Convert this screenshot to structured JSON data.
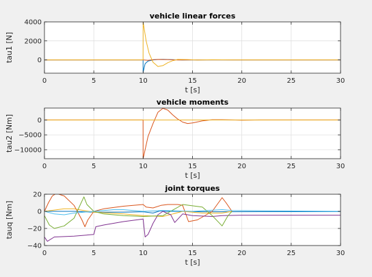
{
  "colors": {
    "figure_bg": "#f0f0f0",
    "axes_bg": "#ffffff",
    "grid": "#dcdcdc",
    "axis": "#262626",
    "series": [
      "#0072bd",
      "#d95319",
      "#edb120",
      "#7e2f8e",
      "#77ac30",
      "#4dbeee"
    ]
  },
  "chart_data": [
    {
      "type": "line",
      "title": "vehicle linear forces",
      "xlabel": "t [s]",
      "ylabel": "tau1 [N]",
      "xlim": [
        0,
        30
      ],
      "ylim": [
        -1400,
        4000
      ],
      "xticks": [
        0,
        5,
        10,
        15,
        20,
        25,
        30
      ],
      "yticks": [
        0,
        2000,
        4000
      ],
      "grid": true,
      "series": [
        {
          "color_index": 0,
          "points": [
            [
              0,
              0
            ],
            [
              9.99,
              0
            ],
            [
              10.0,
              -1300
            ],
            [
              10.2,
              -400
            ],
            [
              10.5,
              -120
            ],
            [
              11,
              0
            ],
            [
              11.5,
              40
            ],
            [
              12,
              60
            ],
            [
              13,
              20
            ],
            [
              14,
              -10
            ],
            [
              15,
              0
            ],
            [
              30,
              0
            ]
          ]
        },
        {
          "color_index": 1,
          "points": [
            [
              0,
              0
            ],
            [
              10,
              0
            ],
            [
              10.5,
              -50
            ],
            [
              11,
              20
            ],
            [
              11.5,
              50
            ],
            [
              12.5,
              30
            ],
            [
              13.5,
              -10
            ],
            [
              15,
              0
            ],
            [
              30,
              0
            ]
          ]
        },
        {
          "color_index": 2,
          "points": [
            [
              0,
              0
            ],
            [
              9.99,
              0
            ],
            [
              10.0,
              4000
            ],
            [
              10.3,
              2000
            ],
            [
              10.6,
              700
            ],
            [
              11,
              -250
            ],
            [
              11.5,
              -700
            ],
            [
              12,
              -600
            ],
            [
              12.5,
              -300
            ],
            [
              13,
              -80
            ],
            [
              13.5,
              50
            ],
            [
              14.5,
              30
            ],
            [
              15.5,
              -20
            ],
            [
              17,
              10
            ],
            [
              19,
              0
            ],
            [
              30,
              0
            ]
          ]
        }
      ]
    },
    {
      "type": "line",
      "title": "vehicle moments",
      "xlabel": "t [s]",
      "ylabel": "tau2 [Nm]",
      "xlim": [
        0,
        30
      ],
      "ylim": [
        -13000,
        4000
      ],
      "xticks": [
        0,
        5,
        10,
        15,
        20,
        25,
        30
      ],
      "yticks": [
        -10000,
        -5000,
        0
      ],
      "grid": true,
      "series": [
        {
          "color_index": 1,
          "points": [
            [
              0,
              0
            ],
            [
              9.99,
              0
            ],
            [
              10.0,
              -13000
            ],
            [
              10.2,
              -10000
            ],
            [
              10.5,
              -5500
            ],
            [
              11,
              -1200
            ],
            [
              11.5,
              2600
            ],
            [
              12,
              3900
            ],
            [
              12.5,
              3300
            ],
            [
              13,
              1700
            ],
            [
              13.5,
              300
            ],
            [
              14,
              -700
            ],
            [
              14.5,
              -1200
            ],
            [
              15,
              -1000
            ],
            [
              16,
              -300
            ],
            [
              17,
              100
            ],
            [
              18,
              100
            ],
            [
              19,
              0
            ],
            [
              20,
              -100
            ],
            [
              22,
              0
            ],
            [
              30,
              0
            ]
          ]
        },
        {
          "color_index": 2,
          "points": [
            [
              0,
              0
            ],
            [
              30,
              0
            ]
          ]
        }
      ]
    },
    {
      "type": "line",
      "title": "joint torques",
      "xlabel": "t [s]",
      "ylabel": "tauq [Nm]",
      "xlim": [
        0,
        30
      ],
      "ylim": [
        -40,
        20
      ],
      "xticks": [
        0,
        5,
        10,
        15,
        20,
        25,
        30
      ],
      "yticks": [
        -40,
        -20,
        0,
        20
      ],
      "grid": true,
      "series": [
        {
          "color_index": 0,
          "points": [
            [
              0,
              0
            ],
            [
              3,
              0
            ],
            [
              5,
              -1
            ],
            [
              8,
              -1
            ],
            [
              10,
              -0.5
            ],
            [
              11,
              -2
            ],
            [
              11.7,
              0.5
            ],
            [
              12.5,
              0
            ],
            [
              14,
              0
            ],
            [
              16,
              -0.5
            ],
            [
              18,
              -0.5
            ],
            [
              30,
              -0.3
            ]
          ]
        },
        {
          "color_index": 1,
          "points": [
            [
              0,
              0
            ],
            [
              0.4,
              10
            ],
            [
              0.8,
              18
            ],
            [
              1.2,
              21
            ],
            [
              2,
              18
            ],
            [
              3,
              7
            ],
            [
              3.8,
              -10
            ],
            [
              4.1,
              -18
            ],
            [
              4.4,
              -10
            ],
            [
              5,
              0
            ],
            [
              6,
              3
            ],
            [
              8,
              6
            ],
            [
              10,
              8
            ],
            [
              10.3,
              5
            ],
            [
              11,
              4
            ],
            [
              11.8,
              7
            ],
            [
              12.5,
              8
            ],
            [
              13.5,
              8
            ],
            [
              14,
              7
            ],
            [
              14.6,
              -12
            ],
            [
              15.5,
              -10
            ],
            [
              17,
              0
            ],
            [
              18,
              16
            ],
            [
              18.4,
              10
            ],
            [
              19,
              0
            ]
          ]
        },
        {
          "color_index": 2,
          "points": [
            [
              0,
              0
            ],
            [
              2,
              3
            ],
            [
              3,
              3
            ],
            [
              5,
              -1
            ],
            [
              8,
              -3
            ],
            [
              10,
              -5
            ],
            [
              12,
              -6
            ],
            [
              13,
              -3
            ],
            [
              14,
              0
            ],
            [
              16,
              -2
            ],
            [
              18,
              -2
            ],
            [
              19,
              0
            ]
          ]
        },
        {
          "color_index": 3,
          "points": [
            [
              0,
              -30
            ],
            [
              0.3,
              -35
            ],
            [
              1,
              -30
            ],
            [
              3,
              -29
            ],
            [
              5,
              -27
            ],
            [
              5.2,
              -18
            ],
            [
              6,
              -16
            ],
            [
              8,
              -12
            ],
            [
              10,
              -9
            ],
            [
              10.2,
              -30
            ],
            [
              10.5,
              -27
            ],
            [
              11,
              -14
            ],
            [
              11.5,
              -4
            ],
            [
              12,
              0
            ],
            [
              12.8,
              -4
            ],
            [
              13.2,
              -13
            ],
            [
              14,
              -3
            ],
            [
              15,
              -5
            ],
            [
              17,
              -6
            ],
            [
              18,
              -5
            ],
            [
              20,
              -4.5
            ],
            [
              30,
              -4.5
            ]
          ]
        },
        {
          "color_index": 4,
          "points": [
            [
              0,
              -5
            ],
            [
              0.5,
              -16
            ],
            [
              1,
              -20
            ],
            [
              2,
              -17
            ],
            [
              3,
              -8
            ],
            [
              4,
              17
            ],
            [
              4.3,
              8
            ],
            [
              5,
              0
            ],
            [
              6,
              -3
            ],
            [
              8,
              -5
            ],
            [
              10,
              -6
            ],
            [
              12,
              -5
            ],
            [
              14,
              8
            ],
            [
              16,
              5
            ],
            [
              17,
              -5
            ],
            [
              18,
              -17
            ],
            [
              18.6,
              -5
            ],
            [
              19,
              0
            ]
          ]
        },
        {
          "color_index": 5,
          "points": [
            [
              0,
              0
            ],
            [
              1,
              -3
            ],
            [
              2,
              -4
            ],
            [
              3,
              -2
            ],
            [
              5,
              0
            ],
            [
              7,
              2
            ],
            [
              8,
              2
            ],
            [
              10,
              0
            ],
            [
              12,
              1
            ],
            [
              15,
              0
            ],
            [
              18,
              2
            ],
            [
              19,
              1
            ],
            [
              30,
              0
            ]
          ]
        }
      ]
    }
  ]
}
